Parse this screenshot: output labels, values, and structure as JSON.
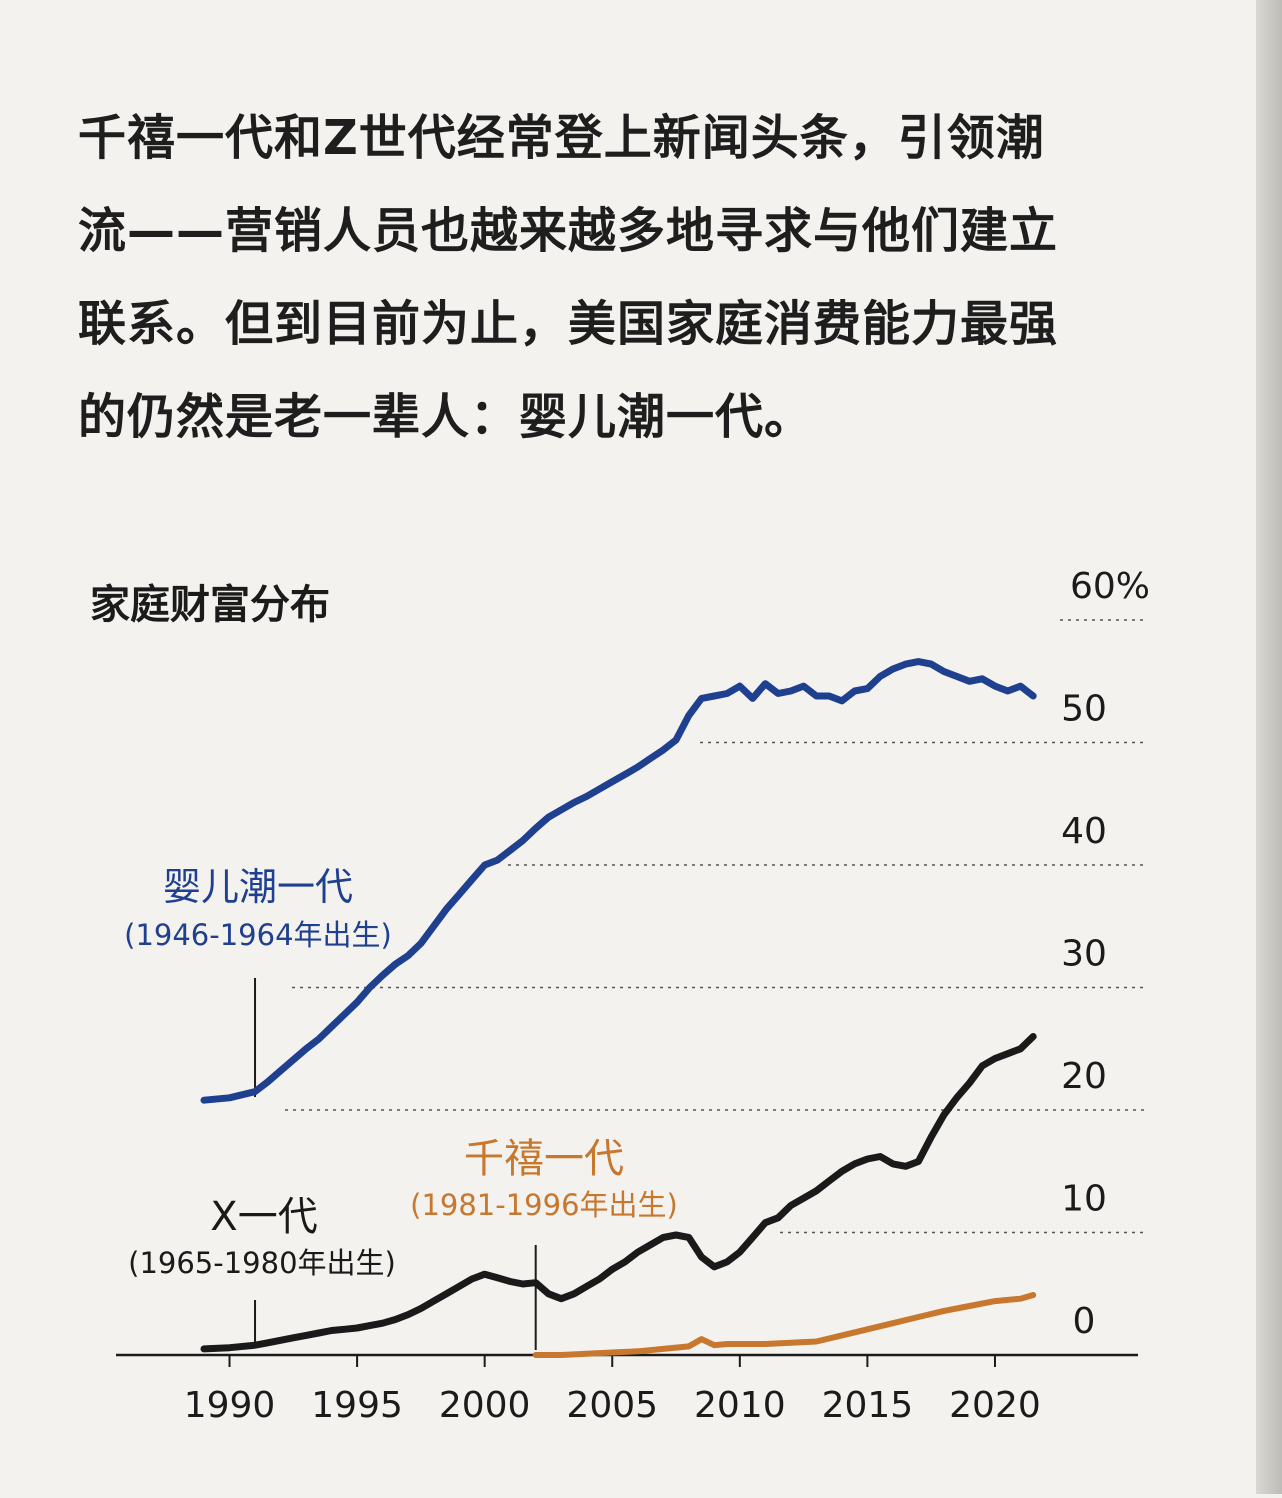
{
  "intro": {
    "lines": [
      "千禧一代和Z世代经常登上新闻头条，引领潮",
      "流——营销人员也越来越多地寻求与他们建立",
      "联系。但到目前为止，美国家庭消费能力最强",
      "的仍然是老一辈人：婴儿潮一代。"
    ]
  },
  "chart_data": {
    "type": "line",
    "title": "家庭财富分布",
    "xlim": [
      1989,
      2022
    ],
    "ylim": [
      0,
      60
    ],
    "x_ticks": [
      "1990",
      "1995",
      "2000",
      "2005",
      "2010",
      "2015",
      "2020"
    ],
    "y_ticks": [
      "0",
      "10",
      "20",
      "30",
      "40",
      "50",
      "60%"
    ],
    "grid": "dotted horizontal",
    "series": [
      {
        "name": "婴儿潮一代",
        "sublabel": "(1946-1964年出生)",
        "color": "#1f3f8f",
        "x": [
          1989.0,
          1990.0,
          1991.0,
          1991.5,
          1992.0,
          1992.5,
          1993.0,
          1993.5,
          1994.0,
          1994.5,
          1995.0,
          1995.5,
          1996.0,
          1996.5,
          1997.0,
          1997.5,
          1998.0,
          1998.5,
          1999.0,
          1999.5,
          2000.0,
          2000.5,
          2001.0,
          2001.5,
          2002.0,
          2002.5,
          2003.0,
          2003.5,
          2004.0,
          2004.5,
          2005.0,
          2005.5,
          2006.0,
          2006.5,
          2007.0,
          2007.5,
          2008.0,
          2008.5,
          2009.0,
          2009.5,
          2010.0,
          2010.5,
          2011.0,
          2011.5,
          2012.0,
          2012.5,
          2013.0,
          2013.5,
          2014.0,
          2014.5,
          2015.0,
          2015.5,
          2016.0,
          2016.5,
          2017.0,
          2017.5,
          2018.0,
          2018.5,
          2019.0,
          2019.5,
          2020.0,
          2020.5,
          2021.0,
          2021.5
        ],
        "y": [
          20.8,
          21.0,
          21.5,
          22.3,
          23.2,
          24.1,
          25.0,
          25.8,
          26.8,
          27.8,
          28.8,
          30.0,
          31.0,
          31.9,
          32.6,
          33.6,
          35.0,
          36.4,
          37.6,
          38.8,
          40.0,
          40.4,
          41.2,
          42.0,
          43.0,
          43.9,
          44.5,
          45.1,
          45.6,
          46.2,
          46.8,
          47.4,
          48.0,
          48.7,
          49.4,
          50.2,
          52.2,
          53.6,
          53.8,
          54.0,
          54.6,
          53.6,
          54.8,
          54.0,
          54.2,
          54.6,
          53.8,
          53.8,
          53.4,
          54.2,
          54.4,
          55.4,
          56.0,
          56.4,
          56.6,
          56.4,
          55.8,
          55.4,
          55.0,
          55.2,
          54.6,
          54.2,
          54.6,
          53.8
        ]
      },
      {
        "name": "X一代",
        "sublabel": "(1965-1980年出生)",
        "color": "#1a1a1a",
        "x": [
          1989.0,
          1990.0,
          1991.0,
          1991.5,
          1992.0,
          1992.5,
          1993.0,
          1993.5,
          1994.0,
          1994.5,
          1995.0,
          1995.5,
          1996.0,
          1996.5,
          1997.0,
          1997.5,
          1998.0,
          1998.5,
          1999.0,
          1999.5,
          2000.0,
          2000.5,
          2001.0,
          2001.5,
          2002.0,
          2002.5,
          2003.0,
          2003.5,
          2004.0,
          2004.5,
          2005.0,
          2005.5,
          2006.0,
          2006.5,
          2007.0,
          2007.5,
          2008.0,
          2008.5,
          2009.0,
          2009.5,
          2010.0,
          2010.5,
          2011.0,
          2011.5,
          2012.0,
          2012.5,
          2013.0,
          2013.5,
          2014.0,
          2014.5,
          2015.0,
          2015.5,
          2016.0,
          2016.5,
          2017.0,
          2017.5,
          2018.0,
          2018.5,
          2019.0,
          2019.5,
          2020.0,
          2020.5,
          2021.0,
          2021.5
        ],
        "y": [
          0.5,
          0.6,
          0.8,
          1.0,
          1.2,
          1.4,
          1.6,
          1.8,
          2.0,
          2.1,
          2.2,
          2.4,
          2.6,
          2.9,
          3.3,
          3.8,
          4.4,
          5.0,
          5.6,
          6.2,
          6.6,
          6.3,
          6.0,
          5.8,
          5.9,
          5.0,
          4.6,
          5.0,
          5.6,
          6.2,
          7.0,
          7.6,
          8.4,
          9.0,
          9.6,
          9.8,
          9.6,
          8.0,
          7.2,
          7.6,
          8.4,
          9.6,
          10.8,
          11.2,
          12.2,
          12.8,
          13.4,
          14.2,
          15.0,
          15.6,
          16.0,
          16.2,
          15.6,
          15.4,
          15.8,
          17.8,
          19.6,
          21.0,
          22.2,
          23.6,
          24.2,
          24.6,
          25.0,
          26.0
        ]
      },
      {
        "name": "千禧一代",
        "sublabel": "(1981-1996年出生)",
        "color": "#c8772e",
        "x": [
          2002.0,
          2003.0,
          2004.0,
          2005.0,
          2006.0,
          2007.0,
          2008.0,
          2008.5,
          2009.0,
          2009.5,
          2010.0,
          2011.0,
          2012.0,
          2013.0,
          2014.0,
          2015.0,
          2016.0,
          2017.0,
          2018.0,
          2019.0,
          2020.0,
          2021.0,
          2021.5
        ],
        "y": [
          0.0,
          0.0,
          0.1,
          0.2,
          0.3,
          0.5,
          0.7,
          1.3,
          0.8,
          0.9,
          0.9,
          0.9,
          1.0,
          1.1,
          1.6,
          2.1,
          2.6,
          3.1,
          3.6,
          4.0,
          4.4,
          4.6,
          4.9
        ]
      }
    ],
    "annotation_ticks": [
      {
        "series": "婴儿潮一代",
        "x": 1991.0
      },
      {
        "series": "X一代",
        "x": 1991.0
      },
      {
        "series": "千禧一代",
        "x": 2002.0
      }
    ]
  }
}
